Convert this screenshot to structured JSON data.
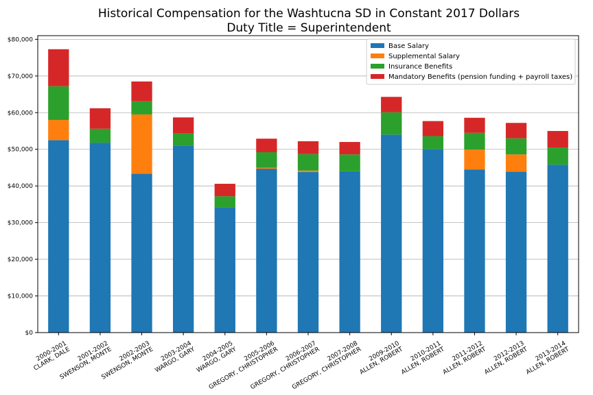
{
  "chart_data": {
    "type": "bar",
    "stacked": true,
    "title": "Historical Compensation for the Washtucna SD in Constant 2017 Dollars",
    "subtitle": "Duty Title = Superintendent",
    "xlabel": "",
    "ylabel": "",
    "ylim": [
      0,
      81000
    ],
    "yticks": [
      0,
      10000,
      20000,
      30000,
      40000,
      50000,
      60000,
      70000,
      80000
    ],
    "ytick_labels": [
      "$0",
      "$10,000",
      "$20,000",
      "$30,000",
      "$40,000",
      "$50,000",
      "$60,000",
      "$70,000",
      "$80,000"
    ],
    "grid": "horizontal",
    "legend_position": "top-right",
    "categories": [
      [
        "2000-2001",
        "CLARK, DALE"
      ],
      [
        "2001-2002",
        "SWENSON, MONTE"
      ],
      [
        "2002-2003",
        "SWENSON, MONTE"
      ],
      [
        "2003-2004",
        "WARGO, GARY"
      ],
      [
        "2004-2005",
        "WARGO, GARY"
      ],
      [
        "2005-2006",
        "GREGORY, CHRISTOPHER"
      ],
      [
        "2006-2007",
        "GREGORY, CHRISTOPHER"
      ],
      [
        "2007-2008",
        "GREGORY, CHRISTOPHER"
      ],
      [
        "2009-2010",
        "ALLEN, ROBERT"
      ],
      [
        "2010-2011",
        "ALLEN, ROBERT"
      ],
      [
        "2011-2012",
        "ALLEN, ROBERT"
      ],
      [
        "2012-2013",
        "ALLEN, ROBERT"
      ],
      [
        "2013-2014",
        "ALLEN, ROBERT"
      ]
    ],
    "series": [
      {
        "name": "Base Salary",
        "color": "#1f77b4",
        "values": [
          52500,
          51800,
          43300,
          51000,
          34200,
          44700,
          43800,
          44000,
          54000,
          50100,
          44500,
          43900,
          45800
        ]
      },
      {
        "name": "Supplemental Salary",
        "color": "#ff7f0e",
        "values": [
          5500,
          0,
          16200,
          0,
          0,
          300,
          400,
          0,
          0,
          0,
          5400,
          4700,
          0
        ]
      },
      {
        "name": "Insurance Benefits",
        "color": "#2ca02c",
        "values": [
          9200,
          3800,
          3600,
          3300,
          3000,
          4200,
          4500,
          4600,
          6100,
          3500,
          4600,
          4400,
          4700
        ]
      },
      {
        "name": "Mandatory Benefits (pension funding + payroll taxes)",
        "color": "#d62728",
        "values": [
          10100,
          5600,
          5400,
          4400,
          3400,
          3700,
          3500,
          3400,
          4200,
          4100,
          4100,
          4200,
          4500
        ]
      }
    ]
  }
}
